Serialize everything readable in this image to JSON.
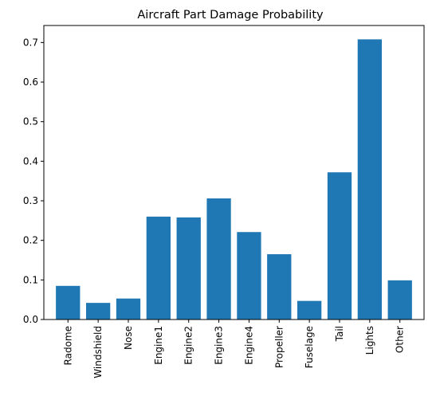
{
  "chart_data": {
    "type": "bar",
    "title": "Aircraft Part Damage Probability",
    "xlabel": "",
    "ylabel": "",
    "categories": [
      "Radome",
      "Windshield",
      "Nose",
      "Engine1",
      "Engine2",
      "Engine3",
      "Engine4",
      "Propeller",
      "Fuselage",
      "Tail",
      "Lights",
      "Other"
    ],
    "values": [
      0.085,
      0.042,
      0.053,
      0.26,
      0.258,
      0.306,
      0.221,
      0.165,
      0.047,
      0.372,
      0.708,
      0.099
    ],
    "ylim": [
      0,
      0.743
    ],
    "yticks": [
      0.0,
      0.1,
      0.2,
      0.3,
      0.4,
      0.5,
      0.6,
      0.7
    ],
    "ytick_labels": [
      "0.0",
      "0.1",
      "0.2",
      "0.3",
      "0.4",
      "0.5",
      "0.6",
      "0.7"
    ],
    "bar_color": "#1f77b4",
    "grid": false,
    "legend": "none"
  }
}
